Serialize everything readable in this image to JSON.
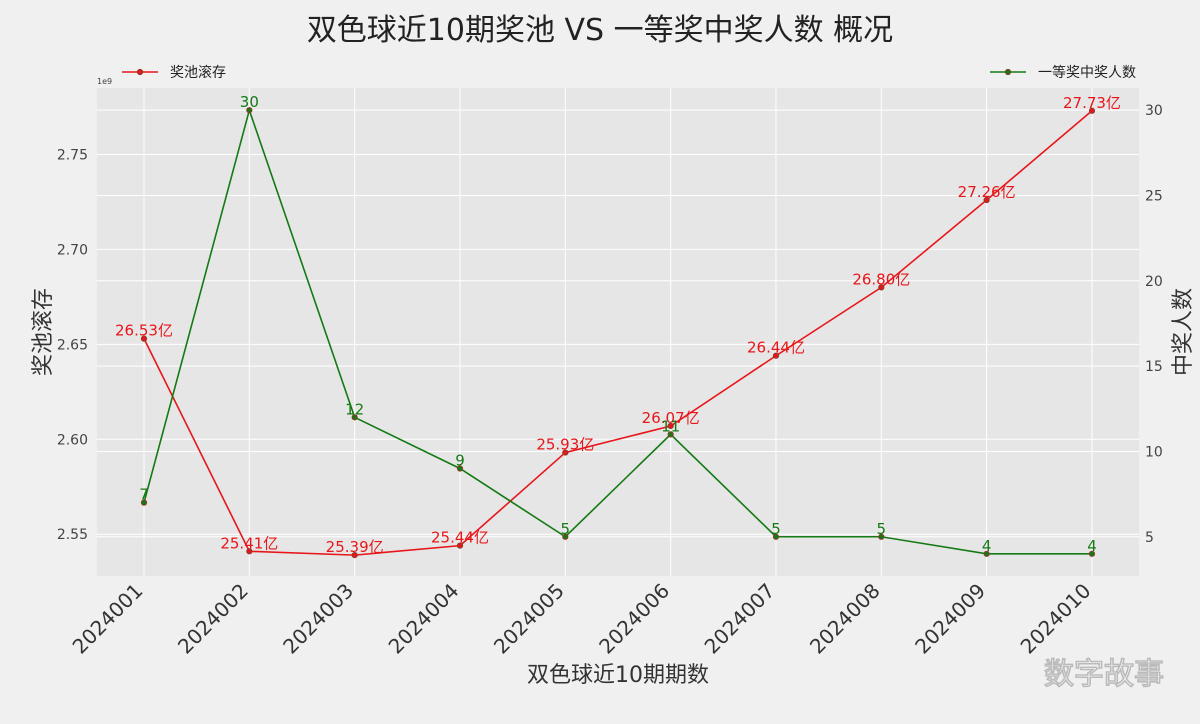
{
  "chart_data": {
    "type": "line",
    "title": "双色球近10期奖池 VS 一等奖中奖人数 概况",
    "xlabel": "双色球近10期期数",
    "categories": [
      "2024001",
      "2024002",
      "2024003",
      "2024004",
      "2024005",
      "2024006",
      "2024007",
      "2024008",
      "2024009",
      "2024010"
    ],
    "y_left": {
      "label": "奖池滚存",
      "range": [
        2.528,
        2.785
      ],
      "ticks": [
        2.55,
        2.6,
        2.65,
        2.7,
        2.75
      ],
      "tick_labels": [
        "2.55",
        "2.60",
        "2.65",
        "2.70",
        "2.75"
      ],
      "offset_text": "1e9"
    },
    "y_right": {
      "label": "中奖人数",
      "range": [
        2.7,
        31.3
      ],
      "ticks": [
        5,
        10,
        15,
        20,
        25,
        30
      ],
      "tick_labels": [
        "5",
        "10",
        "15",
        "20",
        "25",
        "30"
      ]
    },
    "series": [
      {
        "name": "奖池滚存",
        "axis": "left",
        "color": "#e8161a",
        "values": [
          2.653,
          2.541,
          2.539,
          2.544,
          2.593,
          2.607,
          2.644,
          2.68,
          2.726,
          2.773
        ],
        "labels": [
          "26.53亿",
          "25.41亿",
          "25.39亿",
          "25.44亿",
          "25.93亿",
          "26.07亿",
          "26.44亿",
          "26.80亿",
          "27.26亿",
          "27.73亿"
        ]
      },
      {
        "name": "一等奖中奖人数",
        "axis": "right",
        "color": "#147a14",
        "values": [
          7,
          30,
          12,
          9,
          5,
          11,
          5,
          5,
          4,
          4
        ],
        "labels": [
          "7",
          "30",
          "12",
          "9",
          "5",
          "11",
          "5",
          "5",
          "4",
          "4"
        ]
      }
    ],
    "grid": true,
    "legend": [
      "top-left",
      "top-right"
    ]
  },
  "watermark": "数字故事"
}
